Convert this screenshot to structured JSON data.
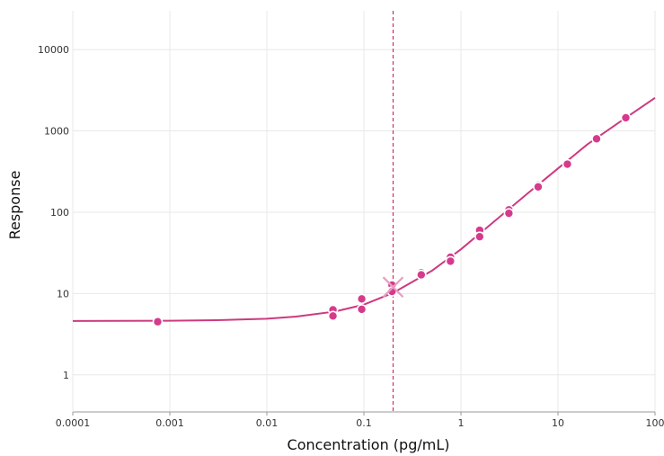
{
  "chart_data": {
    "type": "scatter",
    "title": "",
    "xlabel": "Concentration (pg/mL)",
    "ylabel": "Response",
    "x_scale": "log",
    "y_scale": "log",
    "xlim": [
      0.0001,
      100
    ],
    "ylim": [
      0.35,
      30000
    ],
    "x_ticks": [
      0.0001,
      0.001,
      0.01,
      0.1,
      1,
      10,
      100
    ],
    "x_tick_labels": [
      "0.0001",
      "0.001",
      "0.01",
      "0.1",
      "1",
      "10",
      "100"
    ],
    "y_ticks": [
      1,
      10,
      100,
      1000,
      10000
    ],
    "y_tick_labels": [
      "1",
      "10",
      "100",
      "1000",
      "10000"
    ],
    "grid": true,
    "series": [
      {
        "type": "scatter",
        "points": [
          {
            "x": 0.00075,
            "y": 4.5
          },
          {
            "x": 0.048,
            "y": 6.3
          },
          {
            "x": 0.048,
            "y": 5.3
          },
          {
            "x": 0.095,
            "y": 8.6
          },
          {
            "x": 0.095,
            "y": 6.4
          },
          {
            "x": 0.195,
            "y": 12.7
          },
          {
            "x": 0.195,
            "y": 10.6
          },
          {
            "x": 0.39,
            "y": 18.0
          },
          {
            "x": 0.39,
            "y": 17.0
          },
          {
            "x": 0.78,
            "y": 28.0
          },
          {
            "x": 0.78,
            "y": 25.0
          },
          {
            "x": 1.56,
            "y": 60.0
          },
          {
            "x": 1.56,
            "y": 50.0
          },
          {
            "x": 3.12,
            "y": 107.0
          },
          {
            "x": 3.12,
            "y": 97.0
          },
          {
            "x": 6.25,
            "y": 215.0
          },
          {
            "x": 6.25,
            "y": 205.0
          },
          {
            "x": 12.5,
            "y": 390.0
          },
          {
            "x": 25.0,
            "y": 800.0
          },
          {
            "x": 50.0,
            "y": 1450.0
          }
        ]
      },
      {
        "type": "line",
        "fit_points": [
          {
            "x": 0.0001,
            "y": 4.6
          },
          {
            "x": 0.001,
            "y": 4.63
          },
          {
            "x": 0.003,
            "y": 4.7
          },
          {
            "x": 0.01,
            "y": 4.9
          },
          {
            "x": 0.02,
            "y": 5.2
          },
          {
            "x": 0.05,
            "y": 6.0
          },
          {
            "x": 0.1,
            "y": 7.3
          },
          {
            "x": 0.2,
            "y": 10.2
          },
          {
            "x": 0.5,
            "y": 19.0
          },
          {
            "x": 1,
            "y": 35.0
          },
          {
            "x": 2,
            "y": 70.0
          },
          {
            "x": 5,
            "y": 175.0
          },
          {
            "x": 10,
            "y": 345.0
          },
          {
            "x": 20,
            "y": 680.0
          },
          {
            "x": 50,
            "y": 1450.0
          },
          {
            "x": 100,
            "y": 2550.0
          }
        ]
      }
    ],
    "reference_line": {
      "x": 0.2,
      "style": "dashed"
    },
    "highlight_marker": {
      "x": 0.2,
      "y": 12.0,
      "symbol": "x"
    },
    "colors": {
      "series": "#d63a8c",
      "fit_line": "#cc3a80",
      "reference_line": "#d0305c",
      "grid": "#e8e8e8",
      "axis": "#9a9a9a",
      "marker_outline": "#ffffff",
      "highlight_marker": "#e6a0bf"
    }
  }
}
